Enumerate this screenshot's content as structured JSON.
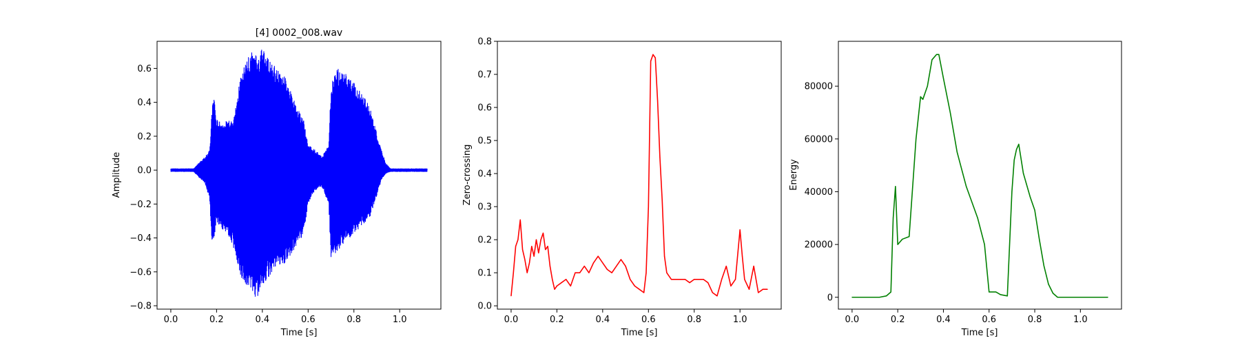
{
  "figure": {
    "panel_titles": [
      "[4] 0002_008.wav",
      "",
      ""
    ]
  },
  "chart_data": [
    {
      "type": "line",
      "title": "[4] 0002_008.wav",
      "xlabel": "Time [s]",
      "ylabel": "Amplitude",
      "xlim": [
        -0.06,
        1.18
      ],
      "ylim": [
        -0.82,
        0.76
      ],
      "xticks": [
        0.0,
        0.2,
        0.4,
        0.6,
        0.8,
        1.0
      ],
      "xtick_labels": [
        "0.0",
        "0.2",
        "0.4",
        "0.6",
        "0.8",
        "1.0"
      ],
      "yticks": [
        -0.8,
        -0.6,
        -0.4,
        -0.2,
        0.0,
        0.2,
        0.4,
        0.6
      ],
      "ytick_labels": [
        "−0.8",
        "−0.6",
        "−0.4",
        "−0.2",
        "0.0",
        "0.2",
        "0.4",
        "0.6"
      ],
      "color": "#0000ff",
      "grid": false,
      "series": [
        {
          "style": "waveform-envelope",
          "x": [
            0.0,
            0.1,
            0.12,
            0.15,
            0.17,
            0.18,
            0.19,
            0.2,
            0.22,
            0.25,
            0.27,
            0.3,
            0.32,
            0.35,
            0.38,
            0.4,
            0.42,
            0.45,
            0.5,
            0.55,
            0.58,
            0.6,
            0.63,
            0.66,
            0.69,
            0.7,
            0.71,
            0.73,
            0.76,
            0.8,
            0.84,
            0.87,
            0.9,
            0.92,
            0.94,
            0.96,
            1.0,
            1.12
          ],
          "upper": [
            0.01,
            0.01,
            0.04,
            0.08,
            0.12,
            0.38,
            0.44,
            0.3,
            0.28,
            0.3,
            0.29,
            0.52,
            0.62,
            0.7,
            0.68,
            0.72,
            0.67,
            0.62,
            0.55,
            0.38,
            0.3,
            0.15,
            0.12,
            0.08,
            0.15,
            0.5,
            0.55,
            0.6,
            0.58,
            0.52,
            0.45,
            0.38,
            0.22,
            0.12,
            0.04,
            0.01,
            0.01,
            0.01
          ],
          "lower": [
            -0.01,
            -0.01,
            -0.04,
            -0.08,
            -0.18,
            -0.45,
            -0.42,
            -0.3,
            -0.35,
            -0.38,
            -0.45,
            -0.6,
            -0.68,
            -0.74,
            -0.76,
            -0.7,
            -0.65,
            -0.58,
            -0.55,
            -0.45,
            -0.38,
            -0.2,
            -0.12,
            -0.1,
            -0.2,
            -0.52,
            -0.5,
            -0.48,
            -0.42,
            -0.38,
            -0.32,
            -0.28,
            -0.15,
            -0.06,
            -0.02,
            -0.01,
            -0.01,
            -0.01
          ]
        }
      ]
    },
    {
      "type": "line",
      "title": "",
      "xlabel": "Time [s]",
      "ylabel": "Zero-crossing",
      "xlim": [
        -0.06,
        1.18
      ],
      "ylim": [
        -0.01,
        0.8
      ],
      "xticks": [
        0.0,
        0.2,
        0.4,
        0.6,
        0.8,
        1.0
      ],
      "xtick_labels": [
        "0.0",
        "0.2",
        "0.4",
        "0.6",
        "0.8",
        "1.0"
      ],
      "yticks": [
        0.0,
        0.1,
        0.2,
        0.3,
        0.4,
        0.5,
        0.6,
        0.7,
        0.8
      ],
      "ytick_labels": [
        "0.0",
        "0.1",
        "0.2",
        "0.3",
        "0.4",
        "0.5",
        "0.6",
        "0.7",
        "0.8"
      ],
      "color": "#ff0000",
      "grid": false,
      "series": [
        {
          "x": [
            0.0,
            0.01,
            0.02,
            0.03,
            0.04,
            0.05,
            0.06,
            0.07,
            0.08,
            0.09,
            0.1,
            0.11,
            0.12,
            0.13,
            0.14,
            0.15,
            0.16,
            0.17,
            0.18,
            0.19,
            0.2,
            0.22,
            0.24,
            0.26,
            0.28,
            0.3,
            0.32,
            0.34,
            0.36,
            0.38,
            0.4,
            0.42,
            0.44,
            0.46,
            0.48,
            0.5,
            0.52,
            0.54,
            0.56,
            0.58,
            0.59,
            0.6,
            0.61,
            0.62,
            0.63,
            0.64,
            0.65,
            0.66,
            0.67,
            0.68,
            0.7,
            0.72,
            0.74,
            0.76,
            0.78,
            0.8,
            0.82,
            0.84,
            0.86,
            0.88,
            0.9,
            0.92,
            0.94,
            0.96,
            0.98,
            1.0,
            1.01,
            1.02,
            1.04,
            1.06,
            1.08,
            1.1,
            1.12
          ],
          "y": [
            0.03,
            0.1,
            0.18,
            0.2,
            0.26,
            0.17,
            0.14,
            0.1,
            0.13,
            0.18,
            0.15,
            0.2,
            0.16,
            0.2,
            0.22,
            0.17,
            0.18,
            0.12,
            0.08,
            0.05,
            0.06,
            0.07,
            0.08,
            0.06,
            0.1,
            0.1,
            0.12,
            0.1,
            0.13,
            0.15,
            0.13,
            0.11,
            0.1,
            0.12,
            0.14,
            0.12,
            0.08,
            0.06,
            0.05,
            0.04,
            0.1,
            0.3,
            0.74,
            0.76,
            0.75,
            0.62,
            0.45,
            0.32,
            0.15,
            0.1,
            0.08,
            0.08,
            0.08,
            0.08,
            0.07,
            0.08,
            0.08,
            0.08,
            0.07,
            0.04,
            0.03,
            0.08,
            0.12,
            0.06,
            0.08,
            0.23,
            0.15,
            0.08,
            0.05,
            0.12,
            0.04,
            0.05,
            0.05
          ]
        }
      ]
    },
    {
      "type": "line",
      "title": "",
      "xlabel": "Time [s]",
      "ylabel": "Energy",
      "xlim": [
        -0.06,
        1.18
      ],
      "ylim": [
        -4500,
        97000
      ],
      "xticks": [
        0.0,
        0.2,
        0.4,
        0.6,
        0.8,
        1.0
      ],
      "xtick_labels": [
        "0.0",
        "0.2",
        "0.4",
        "0.6",
        "0.8",
        "1.0"
      ],
      "yticks": [
        0,
        20000,
        40000,
        60000,
        80000
      ],
      "ytick_labels": [
        "0",
        "20000",
        "40000",
        "60000",
        "80000"
      ],
      "color": "#008000",
      "grid": false,
      "series": [
        {
          "x": [
            0.0,
            0.12,
            0.15,
            0.17,
            0.18,
            0.19,
            0.2,
            0.22,
            0.25,
            0.28,
            0.3,
            0.31,
            0.33,
            0.35,
            0.37,
            0.38,
            0.4,
            0.43,
            0.46,
            0.5,
            0.55,
            0.58,
            0.6,
            0.63,
            0.65,
            0.68,
            0.7,
            0.71,
            0.72,
            0.73,
            0.75,
            0.78,
            0.8,
            0.82,
            0.84,
            0.86,
            0.88,
            0.9,
            0.92,
            1.0,
            1.12
          ],
          "y": [
            0,
            0,
            500,
            2000,
            30000,
            42000,
            20000,
            22000,
            23000,
            60000,
            76000,
            75000,
            80000,
            90000,
            92000,
            92000,
            83000,
            70000,
            55000,
            42000,
            30000,
            20000,
            2000,
            2000,
            1000,
            500,
            40000,
            52000,
            56000,
            58000,
            47000,
            38000,
            33000,
            22000,
            12000,
            5000,
            1500,
            0,
            0,
            0,
            0
          ]
        }
      ]
    }
  ]
}
